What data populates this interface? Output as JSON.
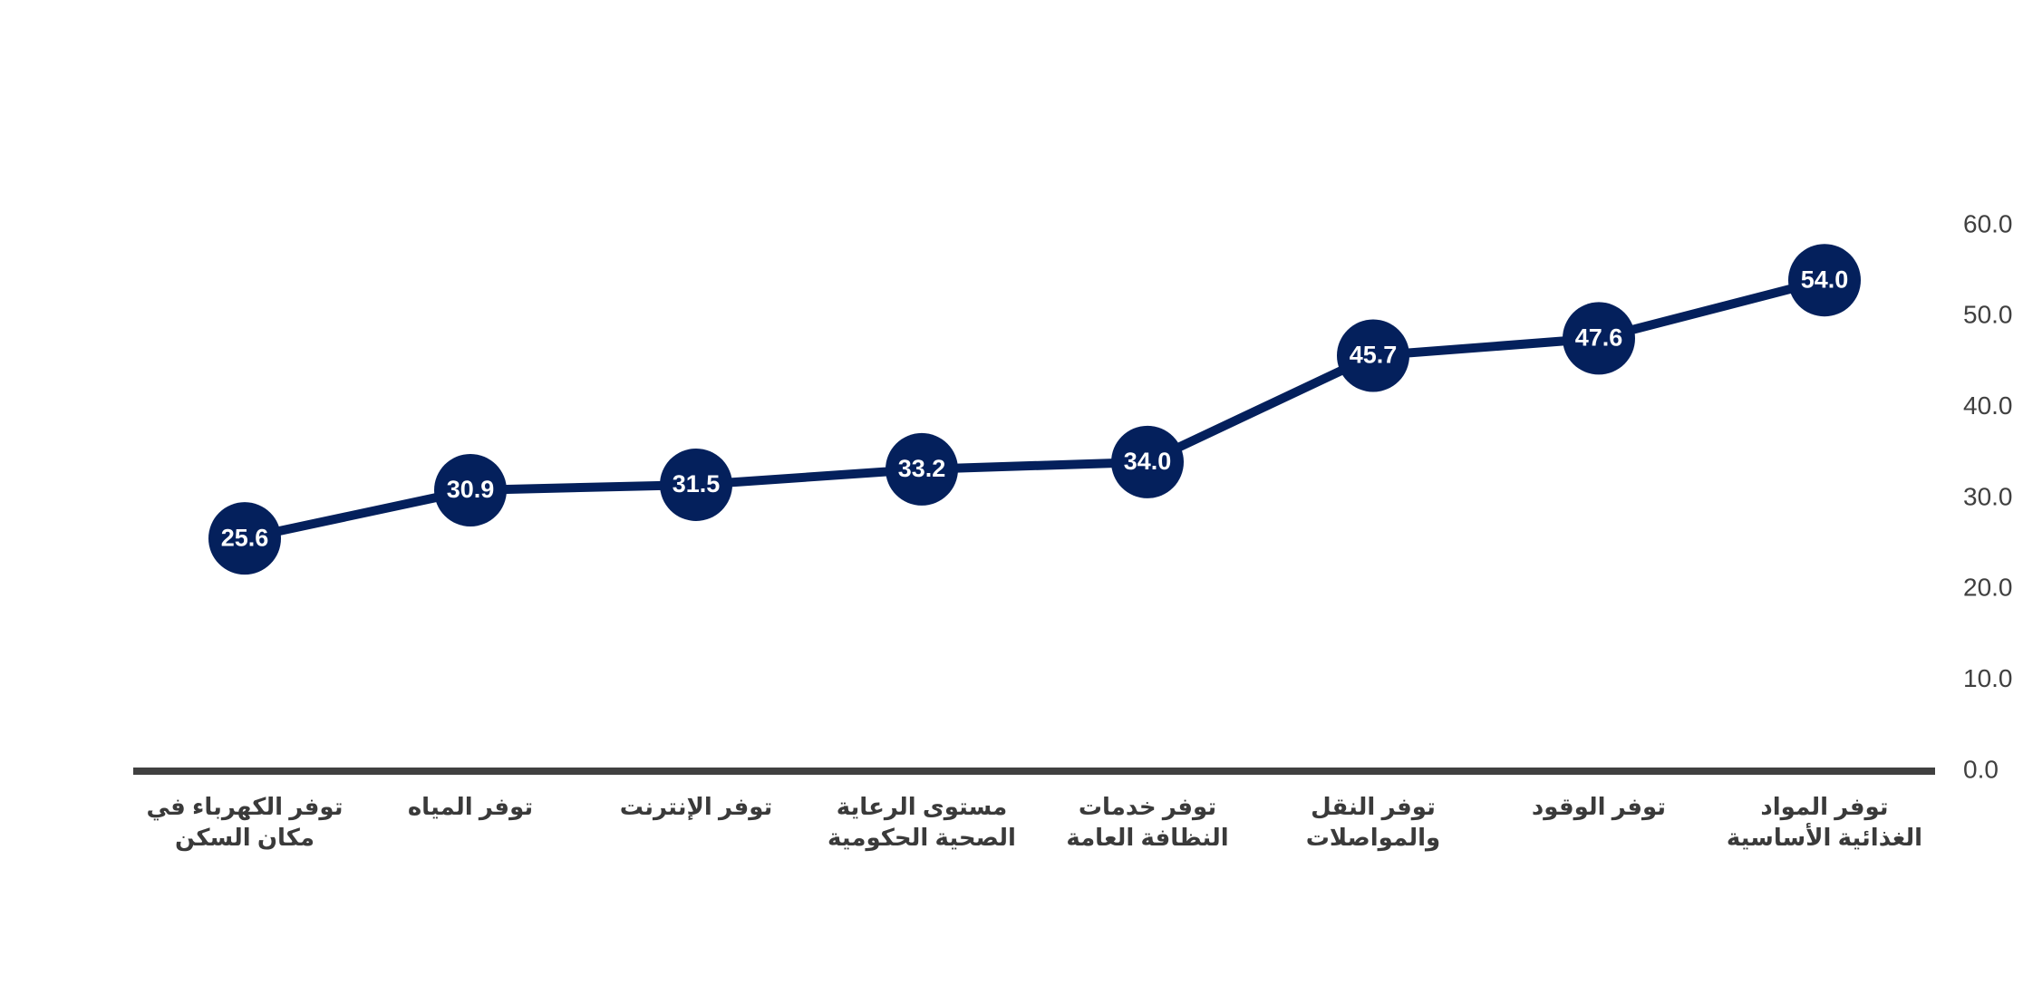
{
  "chart_data": {
    "type": "line",
    "categories": [
      "توفر المواد الغذائية الأساسية",
      "توفر الوقود",
      "توفر النقل والمواصلات",
      "توفر خدمات النظافة العامة",
      "مستوى الرعاية الصحية الحكومية",
      "توفر الإنترنت",
      "توفر المياه",
      "توفر الكهرباء في مكان السكن"
    ],
    "values": [
      54.0,
      47.6,
      45.7,
      34.0,
      33.2,
      31.5,
      30.9,
      25.6
    ],
    "value_labels": [
      "54.0",
      "47.6",
      "45.7",
      "34.0",
      "33.2",
      "31.5",
      "30.9",
      "25.6"
    ],
    "color": "#04205c",
    "ylim": [
      0,
      60
    ],
    "yticks": [
      {
        "value": 0,
        "label": "0.0"
      },
      {
        "value": 10,
        "label": "10.0"
      },
      {
        "value": 20,
        "label": "20.0"
      },
      {
        "value": 30,
        "label": "30.0"
      },
      {
        "value": 40,
        "label": "40.0"
      },
      {
        "value": 50,
        "label": "50.0"
      },
      {
        "value": 60,
        "label": "60.0"
      }
    ],
    "grid": false,
    "x_direction": "right-to-left"
  }
}
